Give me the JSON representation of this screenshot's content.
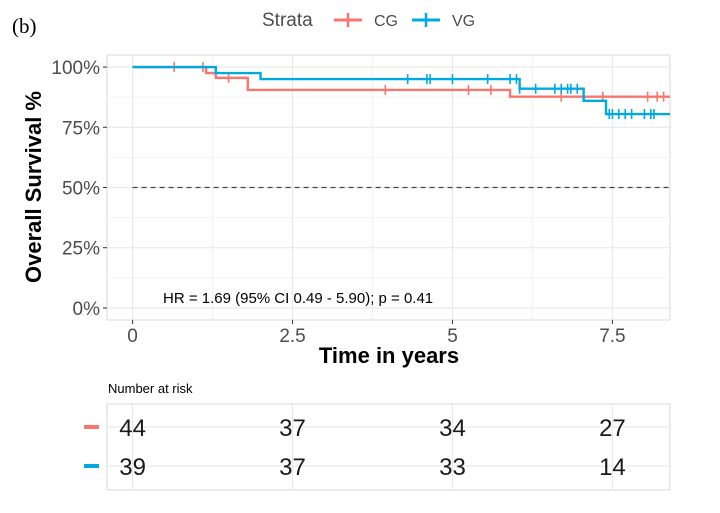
{
  "panel_label": "(b)",
  "chart_data": {
    "type": "line",
    "subtype": "kaplan-meier",
    "title": "",
    "xlabel": "Time in years",
    "ylabel": "Overall Survival %",
    "xlim": [
      -0.4,
      8.4
    ],
    "ylim": [
      -0.05,
      1.05
    ],
    "x_ticks": [
      0,
      2.5,
      5,
      7.5
    ],
    "x_tick_labels": [
      "0",
      "2.5",
      "5",
      "7.5"
    ],
    "y_ticks": [
      0,
      0.25,
      0.5,
      0.75,
      1.0
    ],
    "y_tick_labels": [
      "0%",
      "25%",
      "50%",
      "75%",
      "100%"
    ],
    "reference_line": 0.5,
    "legend": {
      "title": "Strata",
      "position": "top",
      "entries": [
        "CG",
        "VG"
      ]
    },
    "annotation": "HR = 1.69 (95% CI 0.49 - 5.90); p = 0.41",
    "series": [
      {
        "name": "CG",
        "color": "#F8766D",
        "steps": [
          [
            0,
            1.0
          ],
          [
            1.15,
            0.975
          ],
          [
            1.3,
            0.955
          ],
          [
            1.8,
            0.905
          ],
          [
            5.9,
            0.877
          ],
          [
            8.4,
            0.877
          ]
        ],
        "censor_times": [
          0.65,
          1.1,
          1.5,
          3.95,
          5.25,
          5.6,
          6.7,
          7.35,
          8.05,
          8.2,
          8.3
        ]
      },
      {
        "name": "VG",
        "color": "#00A9E0",
        "steps": [
          [
            0,
            1.0
          ],
          [
            1.3,
            0.975
          ],
          [
            2.0,
            0.95
          ],
          [
            6.05,
            0.91
          ],
          [
            7.05,
            0.86
          ],
          [
            7.4,
            0.805
          ],
          [
            8.4,
            0.805
          ]
        ],
        "censor_times": [
          4.3,
          4.6,
          4.65,
          5.0,
          5.55,
          5.9,
          6.0,
          6.05,
          6.3,
          6.6,
          6.7,
          6.8,
          6.85,
          6.95,
          7.45,
          7.5,
          7.6,
          7.7,
          7.8,
          8.0,
          8.1,
          8.15
        ]
      }
    ]
  },
  "risk_table": {
    "title": "Number at risk",
    "times": [
      0,
      2.5,
      5,
      7.5
    ],
    "rows": [
      {
        "name": "CG",
        "color": "#F8766D",
        "values": [
          "44",
          "37",
          "34",
          "27"
        ]
      },
      {
        "name": "VG",
        "color": "#00A9E0",
        "values": [
          "39",
          "37",
          "33",
          "14"
        ]
      }
    ]
  }
}
